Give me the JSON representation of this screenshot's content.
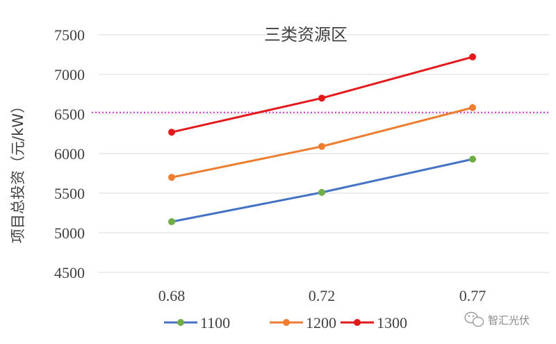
{
  "chart_data": {
    "type": "line",
    "title": "三类资源区",
    "ylabel": "项目总投资（元/kW）",
    "xlabel": "",
    "categories": [
      "0.68",
      "0.72",
      "0.77"
    ],
    "ylim": [
      4500,
      7500
    ],
    "yticks": [
      "7500",
      "7000",
      "6500",
      "6000",
      "5500",
      "5000",
      "4500"
    ],
    "grid": true,
    "legend_position": "bottom",
    "reference_line": {
      "value": 6520,
      "color": "#cc33cc",
      "style": "dotted"
    },
    "series": [
      {
        "name": "1100",
        "values": [
          5140,
          5510,
          5930
        ],
        "color": "#4472c4",
        "marker_color": "#70ad47"
      },
      {
        "name": "1200",
        "values": [
          5700,
          6090,
          6580
        ],
        "color": "#ed7d31",
        "marker_color": "#ed7d31"
      },
      {
        "name": "1300",
        "values": [
          6270,
          6700,
          7220
        ],
        "color": "#e31a1c",
        "marker_color": "#e31a1c"
      }
    ]
  },
  "watermark": {
    "text": "智汇光伏",
    "icon": "wechat-icon"
  }
}
